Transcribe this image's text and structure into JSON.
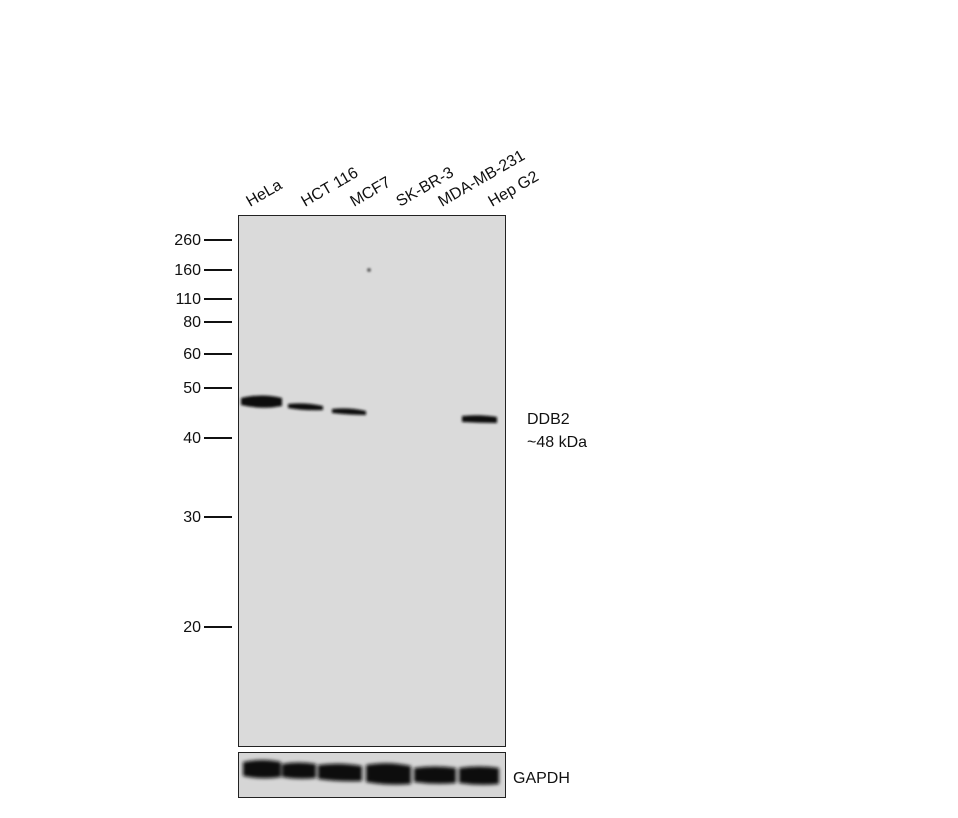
{
  "lanes": [
    "HeLa",
    "HCT 116",
    "MCF7",
    "SK-BR-3",
    "MDA-MB-231",
    "Hep G2"
  ],
  "markers": [
    260,
    160,
    110,
    80,
    60,
    50,
    40,
    30,
    20
  ],
  "target": {
    "name": "DDB2",
    "size": "~48 kDa"
  },
  "loading_control": "GAPDH"
}
